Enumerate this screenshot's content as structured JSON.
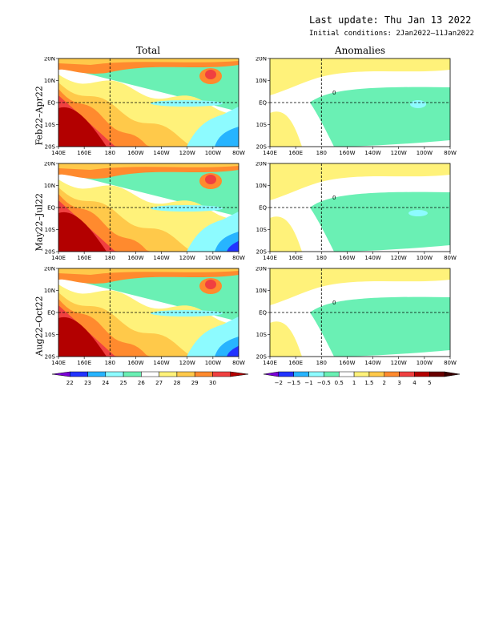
{
  "header": {
    "last_update": "Last update: Thu Jan 13 2022",
    "initial_conditions": "Initial conditions: 2Jan2022–11Jan2022"
  },
  "columns": [
    "Total",
    "Anomalies"
  ],
  "rows": [
    "Feb22–Apr22",
    "May22–Jul22",
    "Aug22–Oct22"
  ],
  "axes": {
    "x_ticks": [
      "140E",
      "160E",
      "180",
      "160W",
      "140W",
      "120W",
      "100W",
      "80W"
    ],
    "y_ticks": [
      "20N",
      "10N",
      "EQ",
      "10S",
      "20S"
    ]
  },
  "contour_labels": {
    "anomaly_zero": "0"
  },
  "colorbars": {
    "total": {
      "labels": [
        "22",
        "23",
        "24",
        "25",
        "26",
        "27",
        "28",
        "29",
        "30"
      ],
      "colors": [
        "#7a00d6",
        "#2233ff",
        "#27b4ff",
        "#8dfbff",
        "#6af0b4",
        "#ffffff",
        "#fff27a",
        "#ffc94a",
        "#ff8a2e",
        "#f04040",
        "#b30000"
      ]
    },
    "anomalies": {
      "labels": [
        "−2",
        "−1.5",
        "−1",
        "−0.5",
        "0.5",
        "1",
        "1.5",
        "2",
        "3",
        "4",
        "5"
      ],
      "colors": [
        "#7a00d6",
        "#2233ff",
        "#27b4ff",
        "#8dfbff",
        "#6af0b4",
        "#ffffff",
        "#fff27a",
        "#ffc94a",
        "#ff8a2e",
        "#f04040",
        "#b30000",
        "#6a0000",
        "#3a0000"
      ]
    }
  },
  "chart_data": [
    {
      "type": "heatmap",
      "title": "Total",
      "row": "Feb22–Apr22",
      "colorbar": "total"
    },
    {
      "type": "heatmap",
      "title": "Anomalies",
      "row": "Feb22–Apr22",
      "colorbar": "anomalies"
    },
    {
      "type": "heatmap",
      "title": "Total",
      "row": "May22–Jul22",
      "colorbar": "total"
    },
    {
      "type": "heatmap",
      "title": "Anomalies",
      "row": "May22–Jul22",
      "colorbar": "anomalies"
    },
    {
      "type": "heatmap",
      "title": "Total",
      "row": "Aug22–Oct22",
      "colorbar": "total"
    },
    {
      "type": "heatmap",
      "title": "Anomalies",
      "row": "Aug22–Oct22",
      "colorbar": "anomalies"
    }
  ]
}
